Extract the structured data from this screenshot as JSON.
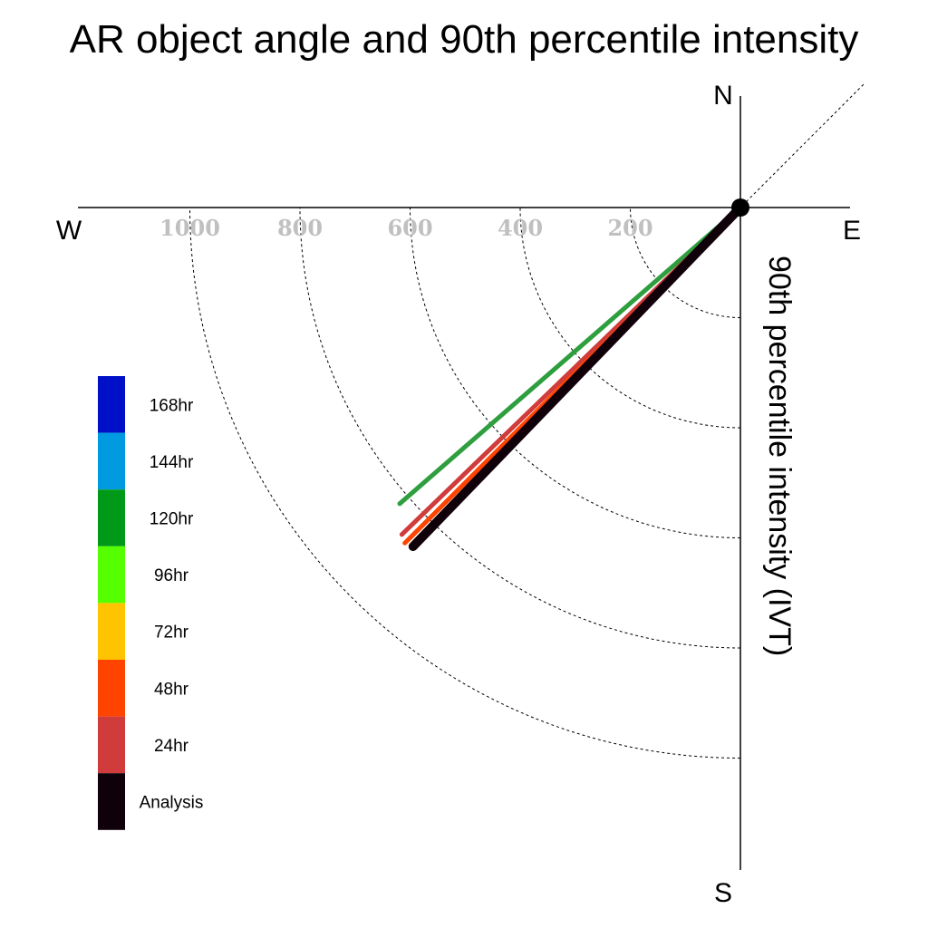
{
  "chart_data": {
    "type": "polar-vector",
    "title": "AR object angle and 90th percentile intensity",
    "ylabel": "90th percentile intensity (IVT)",
    "compass": {
      "north": "N",
      "south": "S",
      "east": "E",
      "west": "W"
    },
    "radial_ticks": [
      200,
      400,
      600,
      800,
      1000
    ],
    "radial_tick_labels": [
      "200",
      "400",
      "600",
      "800",
      "1000"
    ],
    "rlim": [
      0,
      1000
    ],
    "legend": {
      "placement": "left",
      "entries": [
        {
          "label": "168hr",
          "color": "#0010c8"
        },
        {
          "label": "144hr",
          "color": "#009ae0"
        },
        {
          "label": "120hr",
          "color": "#009a18"
        },
        {
          "label": "96hr",
          "color": "#56ff00"
        },
        {
          "label": "72hr",
          "color": "#ffc400"
        },
        {
          "label": "48hr",
          "color": "#ff4400"
        },
        {
          "label": "24hr",
          "color": "#d03c3c"
        },
        {
          "label": "Analysis",
          "color": "#10000a"
        }
      ]
    },
    "series": [
      {
        "name": "120hr",
        "color": "#2e9e3e",
        "angle_deg": 229,
        "intensity": 820
      },
      {
        "name": "24hr",
        "color": "#d03c3c",
        "angle_deg": 226,
        "intensity": 855
      },
      {
        "name": "48hr",
        "color": "#ff4400",
        "angle_deg": 225,
        "intensity": 862
      },
      {
        "name": "Analysis",
        "color": "#10000a",
        "angle_deg": 224,
        "intensity": 856
      }
    ]
  }
}
